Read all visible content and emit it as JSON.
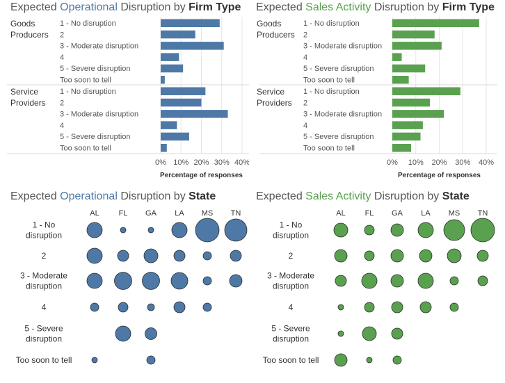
{
  "colors": {
    "blue": "#4e79a7",
    "green": "#59a14f",
    "title_gray": "#555555",
    "grid": "#e6e6e6",
    "divider": "#d9d9d9"
  },
  "titles": {
    "op_firm": {
      "pre": "Expected ",
      "accent": "Operational",
      "mid": " Disruption by ",
      "dim": "Firm Type"
    },
    "sales_firm": {
      "pre": "Expected ",
      "accent": "Sales Activity",
      "mid": " Disruption by ",
      "dim": "Firm Type"
    },
    "op_state": {
      "pre": "Expected ",
      "accent": "Operational",
      "mid": " Disruption by ",
      "dim": "State"
    },
    "sales_state": {
      "pre": "Expected ",
      "accent": "Sales Activity",
      "mid": " Disruption by ",
      "dim": "State"
    }
  },
  "chart_data": [
    {
      "type": "bar",
      "title": "Expected Operational Disruption by Firm Type",
      "groups": [
        "Goods Producers",
        "Service Providers"
      ],
      "categories": [
        "1 - No disruption",
        "2",
        "3 - Moderate disruption",
        "4",
        "5 - Severe disruption",
        "Too soon to tell"
      ],
      "series": [
        {
          "name": "Goods Producers",
          "values": [
            29,
            17,
            31,
            9,
            11,
            2
          ]
        },
        {
          "name": "Service Providers",
          "values": [
            22,
            20,
            33,
            8,
            14,
            3
          ]
        }
      ],
      "xlabel": "Percentage of responses",
      "ticks": [
        "0%",
        "10%",
        "20%",
        "30%",
        "40%"
      ],
      "xlim": [
        0,
        40
      ]
    },
    {
      "type": "bar",
      "title": "Expected Sales Activity Disruption by Firm Type",
      "groups": [
        "Goods Producers",
        "Service Providers"
      ],
      "categories": [
        "1 - No disruption",
        "2",
        "3 - Moderate disruption",
        "4",
        "5 - Severe disruption",
        "Too soon to tell"
      ],
      "series": [
        {
          "name": "Goods Producers",
          "values": [
            37,
            18,
            21,
            4,
            14,
            7
          ]
        },
        {
          "name": "Service Providers",
          "values": [
            29,
            16,
            22,
            13,
            12,
            8
          ]
        }
      ],
      "xlabel": "Percentage of responses",
      "ticks": [
        "0%",
        "10%",
        "20%",
        "30%",
        "40%"
      ],
      "xlim": [
        0,
        40
      ]
    },
    {
      "type": "scatter",
      "title": "Expected Operational Disruption by State",
      "columns": [
        "AL",
        "FL",
        "GA",
        "LA",
        "MS",
        "TN"
      ],
      "rows": [
        "1 - No disruption",
        "2",
        "3 - Moderate disruption",
        "4",
        "5 - Severe disruption",
        "Too soon to tell"
      ],
      "values": [
        [
          22,
          8,
          8,
          22,
          34,
          32
        ],
        [
          22,
          16,
          20,
          16,
          12,
          16
        ],
        [
          22,
          25,
          25,
          24,
          12,
          18
        ],
        [
          12,
          14,
          10,
          16,
          12,
          0
        ],
        [
          0,
          22,
          17,
          0,
          0,
          0
        ],
        [
          8,
          0,
          12,
          0,
          0,
          0
        ]
      ]
    },
    {
      "type": "scatter",
      "title": "Expected Sales Activity Disruption by State",
      "columns": [
        "AL",
        "FL",
        "GA",
        "LA",
        "MS",
        "TN"
      ],
      "rows": [
        "1 - No disruption",
        "2",
        "3 - Moderate disruption",
        "4",
        "5 - Severe disruption",
        "Too soon to tell"
      ],
      "values": [
        [
          20,
          14,
          18,
          22,
          30,
          34
        ],
        [
          18,
          14,
          18,
          18,
          20,
          16
        ],
        [
          16,
          22,
          18,
          22,
          12,
          14
        ],
        [
          8,
          14,
          16,
          16,
          12,
          0
        ],
        [
          8,
          20,
          16,
          0,
          0,
          0
        ],
        [
          18,
          8,
          12,
          0,
          0,
          0
        ]
      ]
    }
  ]
}
